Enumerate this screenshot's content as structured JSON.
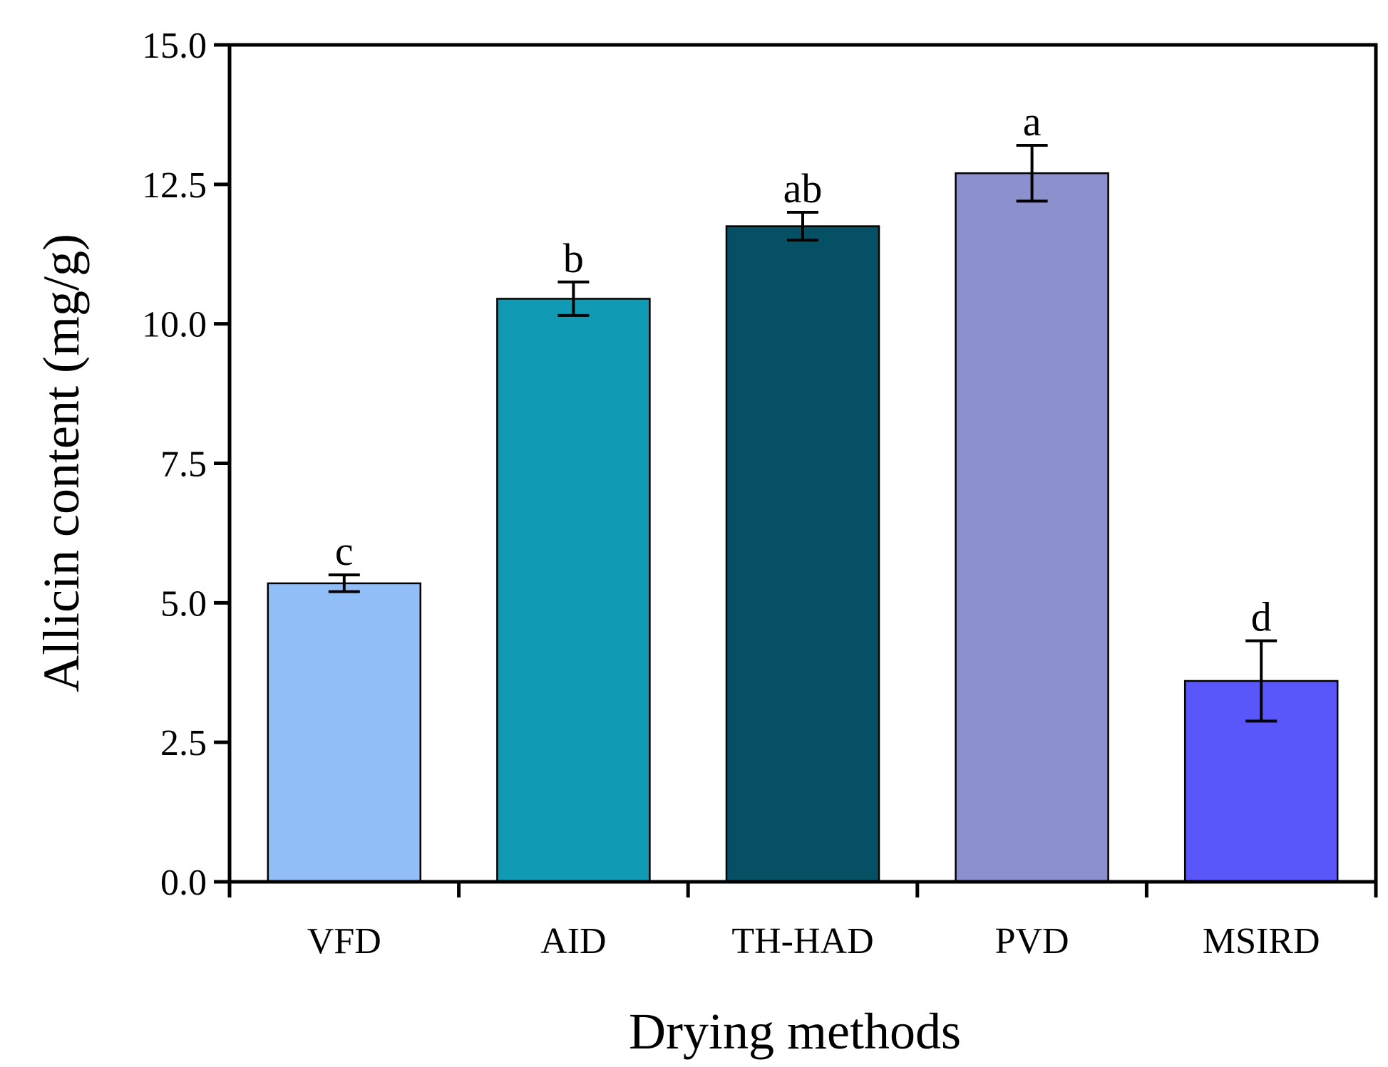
{
  "chart_data": {
    "type": "bar",
    "title": "",
    "xlabel": "Drying methods",
    "ylabel": "Allicin content (mg/g)",
    "ylim": [
      0,
      15
    ],
    "yticks": [
      "0.0",
      "2.5",
      "5.0",
      "7.5",
      "10.0",
      "12.5",
      "15.0"
    ],
    "categories": [
      "VFD",
      "AID",
      "TH-HAD",
      "PVD",
      "MSIRD"
    ],
    "values": [
      5.35,
      10.45,
      11.75,
      12.7,
      3.6
    ],
    "errors": [
      0.15,
      0.3,
      0.25,
      0.5,
      0.72
    ],
    "sig_labels": [
      "c",
      "b",
      "ab",
      "a",
      "d"
    ],
    "colors": [
      "#92BEF8",
      "#119AB4",
      "#055064",
      "#8C91CE",
      "#5A57FA"
    ],
    "grid": false,
    "legend": "none"
  }
}
